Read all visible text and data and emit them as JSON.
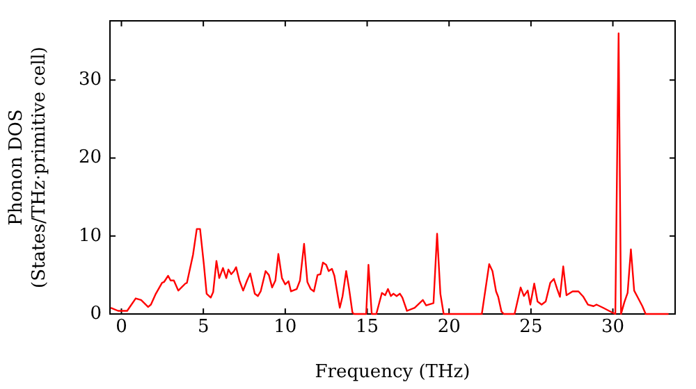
{
  "chart_data": {
    "type": "line",
    "xlabel": "Frequency (THz)",
    "ylabel": "Phonon DOS\n(States/THz·primitive cell)",
    "xlim": [
      -0.7,
      33.8
    ],
    "ylim": [
      0,
      37.6
    ],
    "xticks": [
      0,
      5,
      10,
      15,
      20,
      25,
      30
    ],
    "yticks": [
      0,
      10,
      20,
      30
    ],
    "grid": false,
    "legend": false,
    "marker": "none",
    "line_style": "solid",
    "series": [
      {
        "color": "#ff0000",
        "x": [
          -0.65,
          -0.2,
          0.35,
          0.87,
          1.2,
          1.63,
          1.8,
          2.1,
          2.48,
          2.6,
          2.85,
          3.0,
          3.2,
          3.47,
          3.9,
          4.0,
          4.37,
          4.6,
          4.8,
          5.03,
          5.2,
          5.45,
          5.6,
          5.8,
          5.97,
          6.2,
          6.4,
          6.53,
          6.7,
          6.87,
          7.0,
          7.2,
          7.43,
          7.67,
          7.86,
          8.14,
          8.33,
          8.5,
          8.8,
          9.0,
          9.2,
          9.4,
          9.58,
          9.8,
          10.0,
          10.2,
          10.35,
          10.7,
          10.9,
          11.15,
          11.35,
          11.55,
          11.75,
          11.97,
          12.15,
          12.3,
          12.5,
          12.65,
          12.85,
          13.0,
          13.33,
          13.5,
          13.72,
          13.9,
          14.1,
          14.2,
          14.94,
          15.08,
          15.28,
          15.56,
          15.9,
          16.1,
          16.27,
          16.45,
          16.6,
          16.8,
          17.0,
          17.15,
          17.43,
          17.9,
          18.2,
          18.4,
          18.6,
          19.05,
          19.27,
          19.47,
          19.67,
          22.0,
          22.45,
          22.65,
          22.87,
          23.0,
          23.2,
          23.35,
          24.0,
          24.37,
          24.57,
          24.8,
          24.96,
          25.2,
          25.4,
          25.65,
          25.9,
          26.18,
          26.4,
          26.6,
          26.77,
          26.97,
          27.17,
          27.54,
          27.9,
          28.2,
          28.48,
          28.82,
          29.0,
          29.4,
          29.95,
          30.15,
          30.35,
          30.5,
          30.7,
          30.9,
          31.1,
          31.3,
          31.5,
          31.8,
          32.0,
          33.4
        ],
        "values": [
          0.8,
          0.4,
          0.4,
          2.0,
          1.8,
          0.9,
          1.2,
          2.6,
          4.0,
          4.1,
          4.9,
          4.3,
          4.3,
          3.0,
          3.9,
          4.0,
          7.6,
          10.9,
          10.9,
          6.4,
          2.6,
          2.1,
          2.8,
          6.8,
          4.6,
          5.9,
          4.6,
          5.7,
          5.1,
          5.5,
          6.0,
          4.3,
          3.0,
          4.3,
          5.2,
          2.6,
          2.3,
          2.9,
          5.5,
          5.0,
          3.4,
          4.3,
          7.7,
          4.6,
          3.8,
          4.2,
          2.9,
          3.2,
          4.3,
          9.0,
          4.1,
          3.2,
          2.9,
          5.0,
          5.1,
          6.6,
          6.3,
          5.5,
          5.8,
          4.9,
          0.8,
          2.3,
          5.5,
          3.2,
          0.2,
          0,
          0,
          6.3,
          0,
          0,
          2.7,
          2.4,
          3.2,
          2.3,
          2.6,
          2.3,
          2.6,
          2.1,
          0.4,
          0.8,
          1.4,
          1.8,
          1.1,
          1.4,
          10.3,
          2.6,
          0,
          0,
          6.4,
          5.5,
          2.9,
          2.2,
          0.3,
          0,
          0,
          3.4,
          2.3,
          3.0,
          1.2,
          3.9,
          1.6,
          1.2,
          1.6,
          4.0,
          4.5,
          3.2,
          2.2,
          6.1,
          2.4,
          2.9,
          2.9,
          2.2,
          1.2,
          1.0,
          1.2,
          0.8,
          0.2,
          0,
          36.0,
          0,
          1.5,
          2.7,
          8.3,
          3.0,
          2.2,
          1.0,
          0,
          0
        ]
      }
    ]
  }
}
